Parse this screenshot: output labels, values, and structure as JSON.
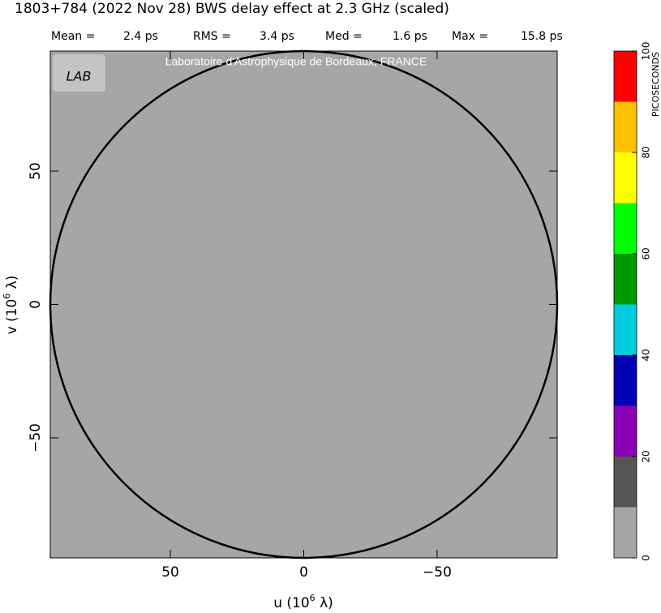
{
  "chart_data": {
    "type": "uvmap",
    "title": "1803+784  (2022 Nov 28)   BWS delay effect at  2.3 GHz (scaled)",
    "stats": [
      {
        "label": "Mean =",
        "value": "2.4 ps"
      },
      {
        "label": "RMS =",
        "value": "3.4 ps"
      },
      {
        "label": "Med =",
        "value": "1.6 ps"
      },
      {
        "label": "Max =",
        "value": "15.8 ps"
      }
    ],
    "credit": "Laboratoire d'Astrophysique de Bordeaux, FRANCE",
    "logo_text": "LAB",
    "x_label": {
      "prefix": "u  (10",
      "sup": "6",
      "suffix": " λ)"
    },
    "y_label": {
      "prefix": "v  (10",
      "sup": "6",
      "suffix": " λ)"
    },
    "xlim": [
      95,
      -95
    ],
    "ylim": [
      -95,
      95
    ],
    "xticks": [
      50,
      0,
      {
        "value": -50,
        "label": "−50"
      }
    ],
    "yticks": [
      {
        "value": -50,
        "label": "−50"
      },
      0,
      50
    ],
    "circle_radius": 95,
    "background_color": "#a6a6a6",
    "colorbar": {
      "label": "PICOSECONDS",
      "bins": [
        0,
        10,
        20,
        30,
        40,
        50,
        60,
        70,
        80,
        90,
        100
      ],
      "colors": [
        "#a6a6a6",
        "#555555",
        "#8a00b4",
        "#0000b4",
        "#00cce0",
        "#009a00",
        "#00ff00",
        "#ffff00",
        "#ffc000",
        "#ff0000"
      ],
      "ticks": [
        0,
        20,
        40,
        60,
        80,
        100
      ]
    }
  }
}
